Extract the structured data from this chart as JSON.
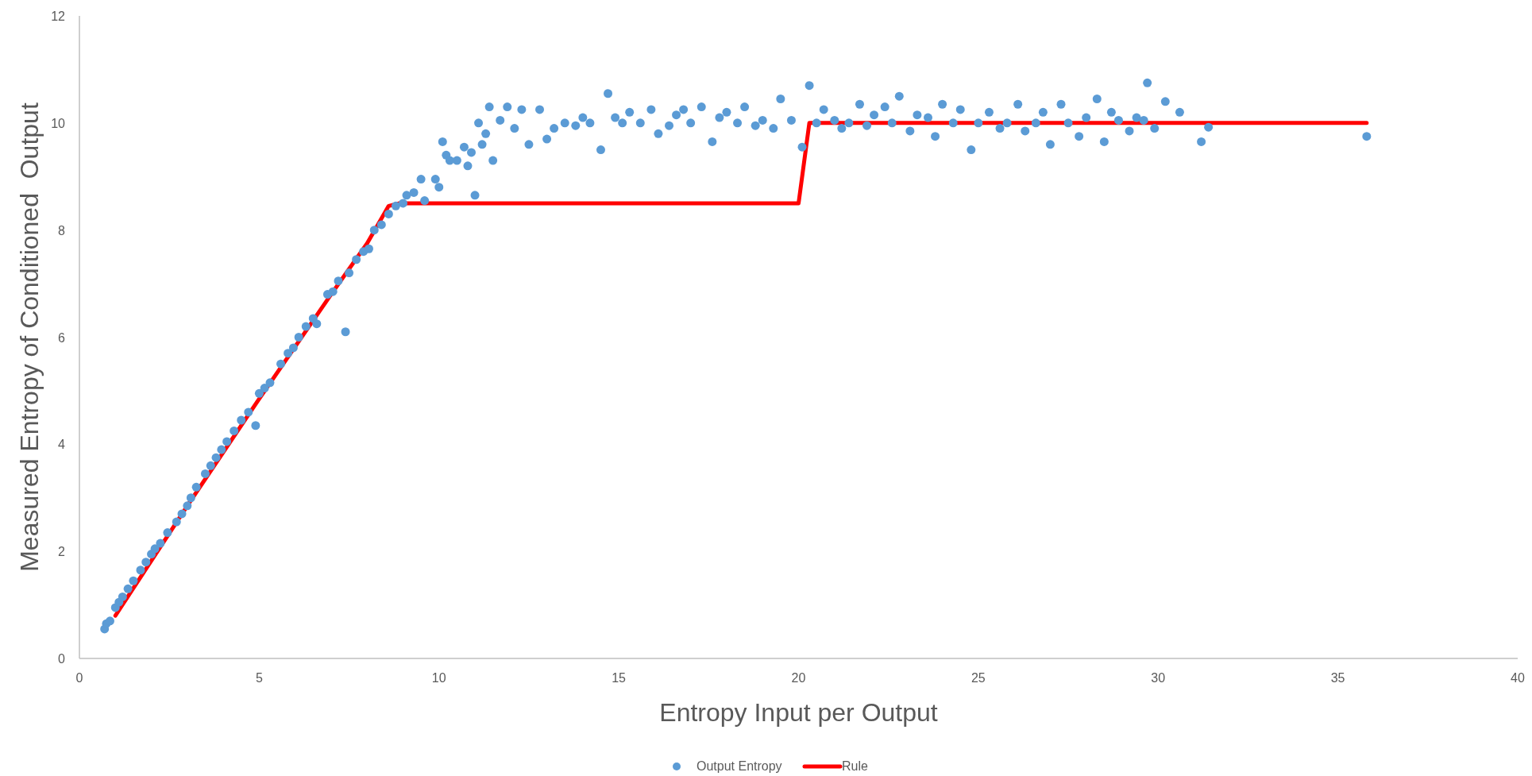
{
  "chart_data": {
    "type": "scatter",
    "xlabel": "Entropy Input per Output",
    "ylabel": "Measured Entropy of Conditioned  Output",
    "xlim": [
      0,
      40
    ],
    "xticks": [
      0,
      5,
      10,
      15,
      20,
      25,
      30,
      35,
      40
    ],
    "ylim": [
      0,
      12
    ],
    "yticks": [
      0,
      2,
      4,
      6,
      8,
      10,
      12
    ],
    "grid": false,
    "legend": "bottom",
    "marker": "circle",
    "series": [
      {
        "name": "Output Entropy",
        "color": "#5b9bd5",
        "x": [
          0.7,
          0.75,
          0.85,
          1.0,
          1.1,
          1.2,
          1.35,
          1.5,
          1.7,
          1.85,
          2.0,
          2.1,
          2.25,
          2.45,
          2.7,
          2.85,
          3.0,
          3.1,
          3.25,
          3.5,
          3.65,
          3.8,
          3.95,
          4.1,
          4.3,
          4.5,
          4.7,
          4.9,
          5.0,
          5.15,
          5.3,
          5.6,
          5.8,
          5.95,
          6.1,
          6.3,
          6.5,
          6.6,
          6.9,
          7.05,
          7.2,
          7.4,
          7.5,
          7.7,
          7.9,
          8.05,
          8.2,
          8.4,
          8.6,
          8.8,
          9.0,
          9.1,
          9.3,
          9.5,
          9.6,
          9.9,
          10.0,
          10.1,
          10.2,
          10.3,
          10.5,
          10.7,
          10.8,
          10.9,
          11.0,
          11.1,
          11.2,
          11.3,
          11.4,
          11.5,
          11.7,
          11.9,
          12.1,
          12.3,
          12.5,
          12.8,
          13.0,
          13.2,
          13.5,
          13.8,
          14.0,
          14.2,
          14.5,
          14.7,
          14.9,
          15.1,
          15.3,
          15.6,
          15.9,
          16.1,
          16.4,
          16.6,
          16.8,
          17.0,
          17.3,
          17.6,
          17.8,
          18.0,
          18.3,
          18.5,
          18.8,
          19.0,
          19.3,
          19.5,
          19.8,
          20.1,
          20.3,
          20.5,
          20.7,
          21.0,
          21.2,
          21.4,
          21.7,
          21.9,
          22.1,
          22.4,
          22.6,
          22.8,
          23.1,
          23.3,
          23.6,
          23.8,
          24.0,
          24.3,
          24.5,
          24.8,
          25.0,
          25.3,
          25.6,
          25.8,
          26.1,
          26.3,
          26.6,
          26.8,
          27.0,
          27.3,
          27.5,
          27.8,
          28.0,
          28.3,
          28.5,
          28.7,
          28.9,
          29.2,
          29.4,
          29.6,
          29.7,
          29.9,
          30.2,
          30.6,
          31.2,
          31.4,
          35.8
        ],
        "values": [
          0.55,
          0.65,
          0.7,
          0.95,
          1.05,
          1.15,
          1.3,
          1.45,
          1.65,
          1.8,
          1.95,
          2.05,
          2.15,
          2.35,
          2.55,
          2.7,
          2.85,
          3.0,
          3.2,
          3.45,
          3.6,
          3.75,
          3.9,
          4.05,
          4.25,
          4.45,
          4.6,
          4.35,
          4.95,
          5.05,
          5.15,
          5.5,
          5.7,
          5.8,
          6.0,
          6.2,
          6.35,
          6.25,
          6.8,
          6.85,
          7.05,
          6.1,
          7.2,
          7.45,
          7.6,
          7.65,
          8.0,
          8.1,
          8.3,
          8.45,
          8.5,
          8.65,
          8.7,
          8.95,
          8.55,
          8.95,
          8.8,
          9.65,
          9.4,
          9.3,
          9.3,
          9.55,
          9.2,
          9.45,
          8.65,
          10.0,
          9.6,
          9.8,
          10.3,
          9.3,
          10.05,
          10.3,
          9.9,
          10.25,
          9.6,
          10.25,
          9.7,
          9.9,
          10.0,
          9.95,
          10.1,
          10.0,
          9.5,
          10.55,
          10.1,
          10.0,
          10.2,
          10.0,
          10.25,
          9.8,
          9.95,
          10.15,
          10.25,
          10.0,
          10.3,
          9.65,
          10.1,
          10.2,
          10.0,
          10.3,
          9.95,
          10.05,
          9.9,
          10.45,
          10.05,
          9.55,
          10.7,
          10.0,
          10.25,
          10.05,
          9.9,
          10.0,
          10.35,
          9.95,
          10.15,
          10.3,
          10.0,
          10.5,
          9.85,
          10.15,
          10.1,
          9.75,
          10.35,
          10.0,
          10.25,
          9.5,
          10.0,
          10.2,
          9.9,
          10.0,
          10.35,
          9.85,
          10.0,
          10.2,
          9.6,
          10.35,
          10.0,
          9.75,
          10.1,
          10.45,
          9.65,
          10.2,
          10.05,
          9.85,
          10.1,
          10.05,
          10.75,
          9.9,
          10.4,
          10.2,
          9.65,
          9.92,
          9.75
        ]
      },
      {
        "name": "Rule",
        "type": "line",
        "color": "#ff0000",
        "marker": "none",
        "line_style": "solid",
        "x": [
          1.0,
          3.0,
          5.0,
          7.0,
          8.0,
          8.3,
          8.6,
          8.9,
          20.0,
          20.3,
          35.8
        ],
        "values": [
          0.8,
          2.85,
          4.85,
          6.8,
          7.75,
          8.1,
          8.45,
          8.5,
          8.5,
          10.0,
          10.0
        ]
      }
    ]
  }
}
